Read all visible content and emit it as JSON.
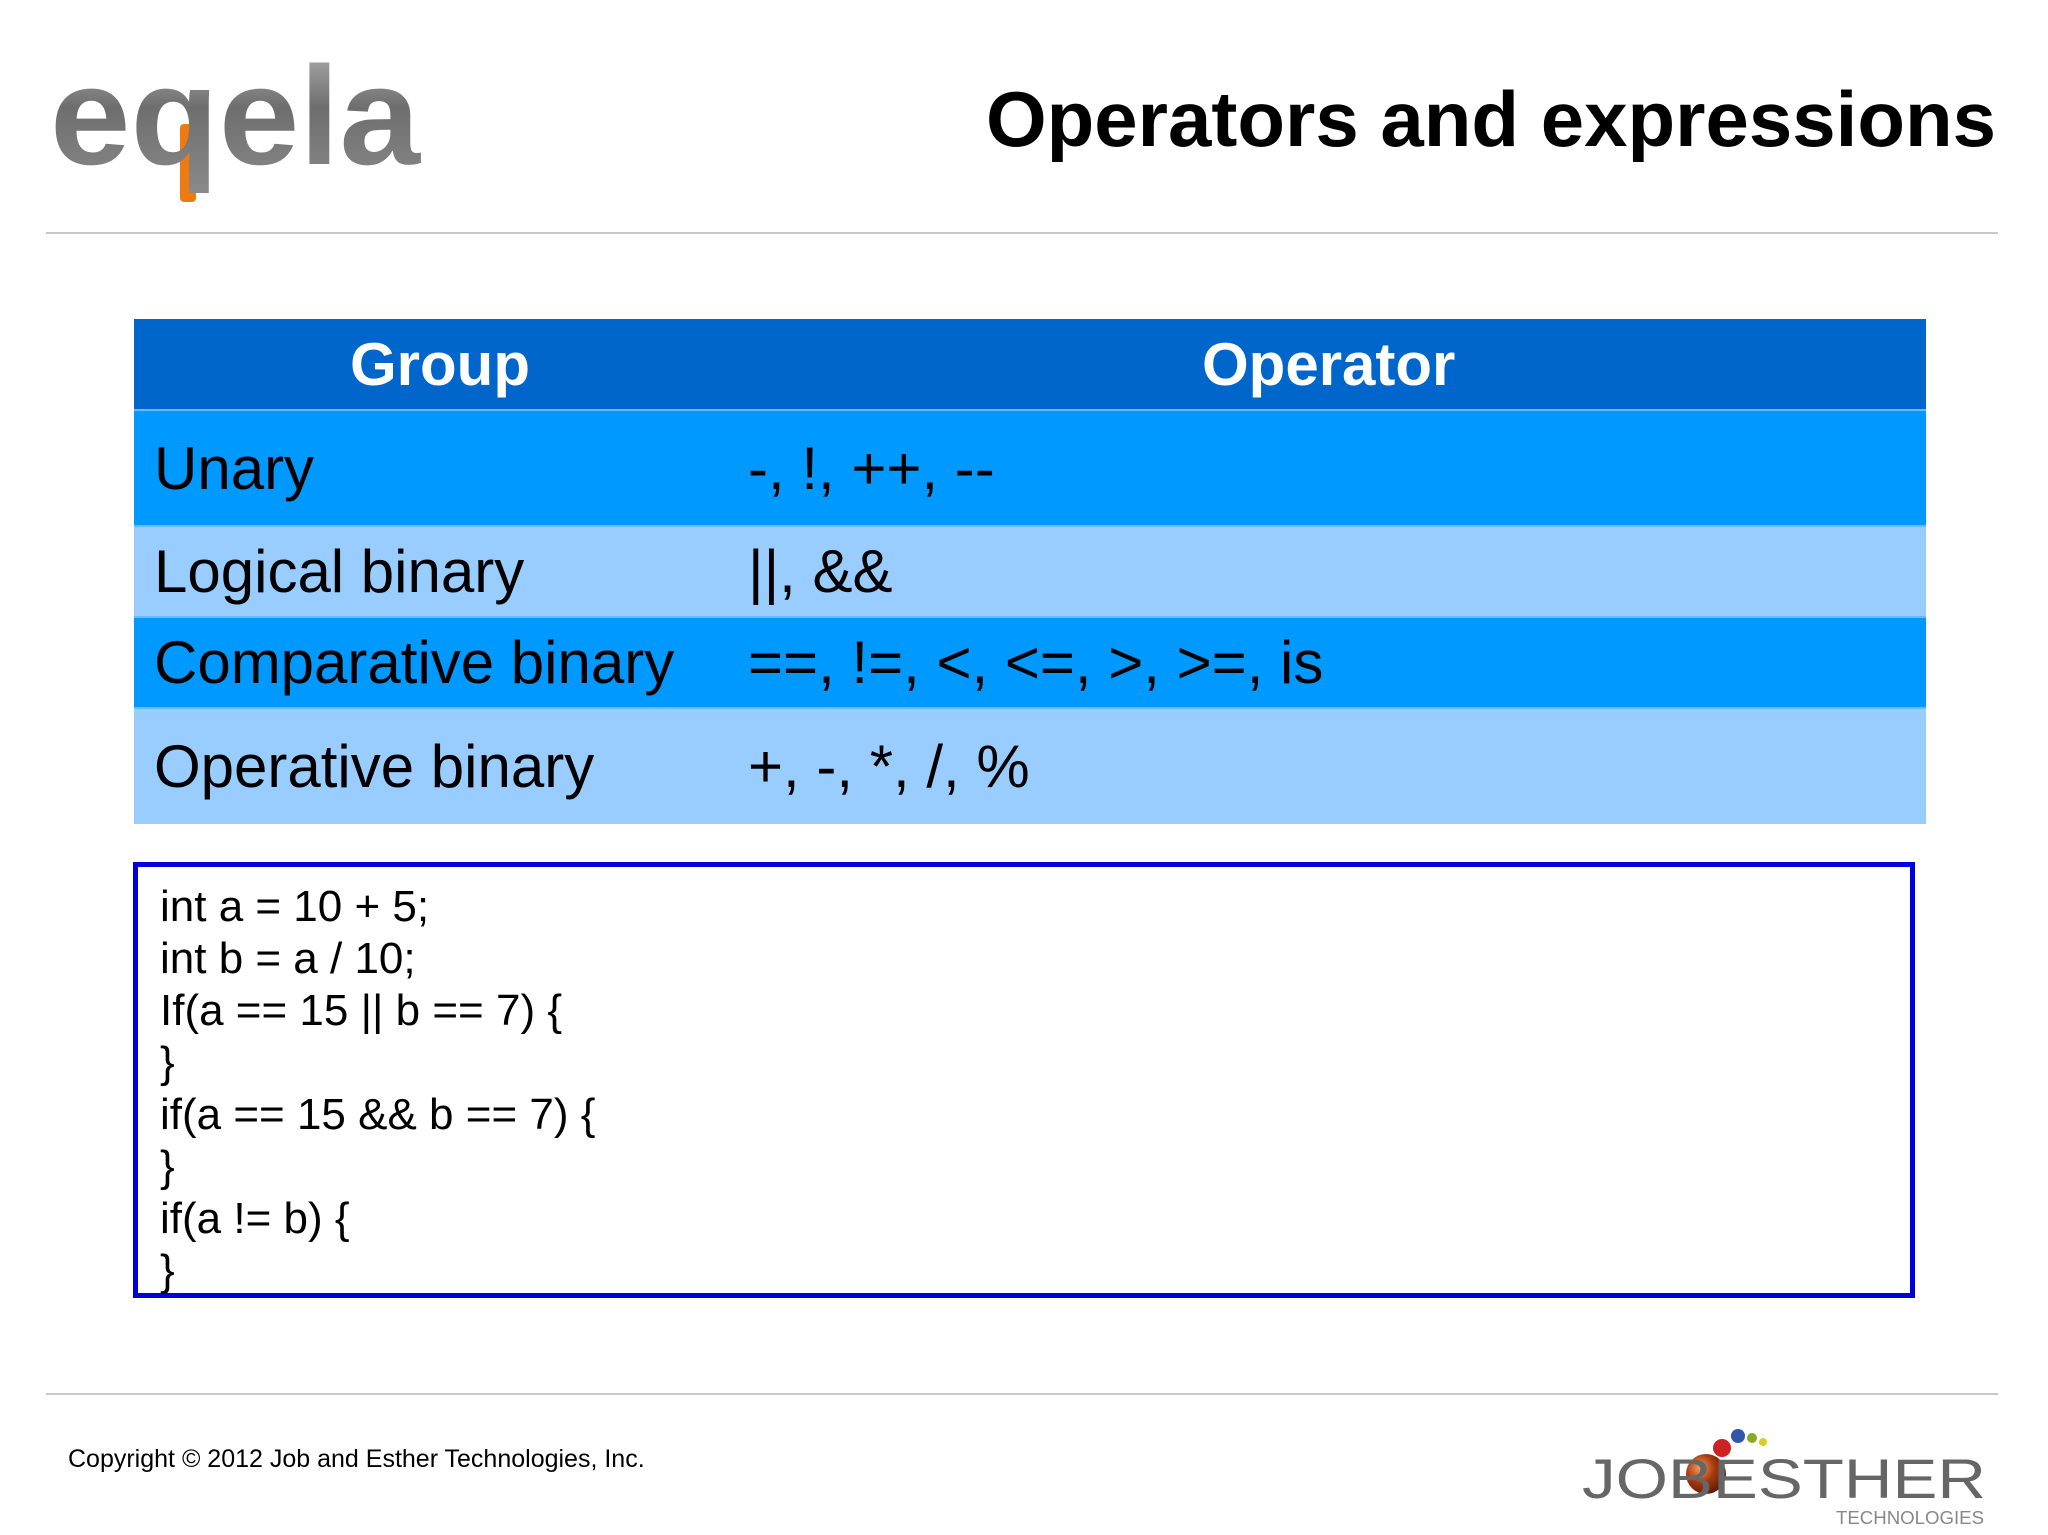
{
  "header": {
    "logo_text": "eqela",
    "title": "Operators and expressions"
  },
  "table": {
    "headers": [
      "Group",
      "Operator"
    ],
    "rows": [
      {
        "group": "Unary",
        "operators": "-, !, ++, --"
      },
      {
        "group": "Logical binary",
        "operators": "||, &&"
      },
      {
        "group": "Comparative binary",
        "operators": "==, !=, <, <=, >, >=, is"
      },
      {
        "group": "Operative binary",
        "operators": "+, -, *, /, %"
      }
    ]
  },
  "code": {
    "lines": [
      "int a = 10 + 5;",
      "int b = a / 10;",
      "If(a == 15 || b == 7) {",
      "}",
      "if(a == 15 && b == 7) {",
      "}",
      "if(a != b) {",
      "}"
    ]
  },
  "footer": {
    "copyright": "Copyright © 2012 Job and Esther Technologies, Inc.",
    "logo_text": "JOBESTHER",
    "logo_subtext": "TECHNOLOGIES"
  },
  "colors": {
    "header_row": "#0066cc",
    "dark_row": "#0099ff",
    "light_row": "#99ccff",
    "code_border": "#0000dd",
    "logo_gray": "#777777",
    "logo_orange": "#ee7a11"
  }
}
